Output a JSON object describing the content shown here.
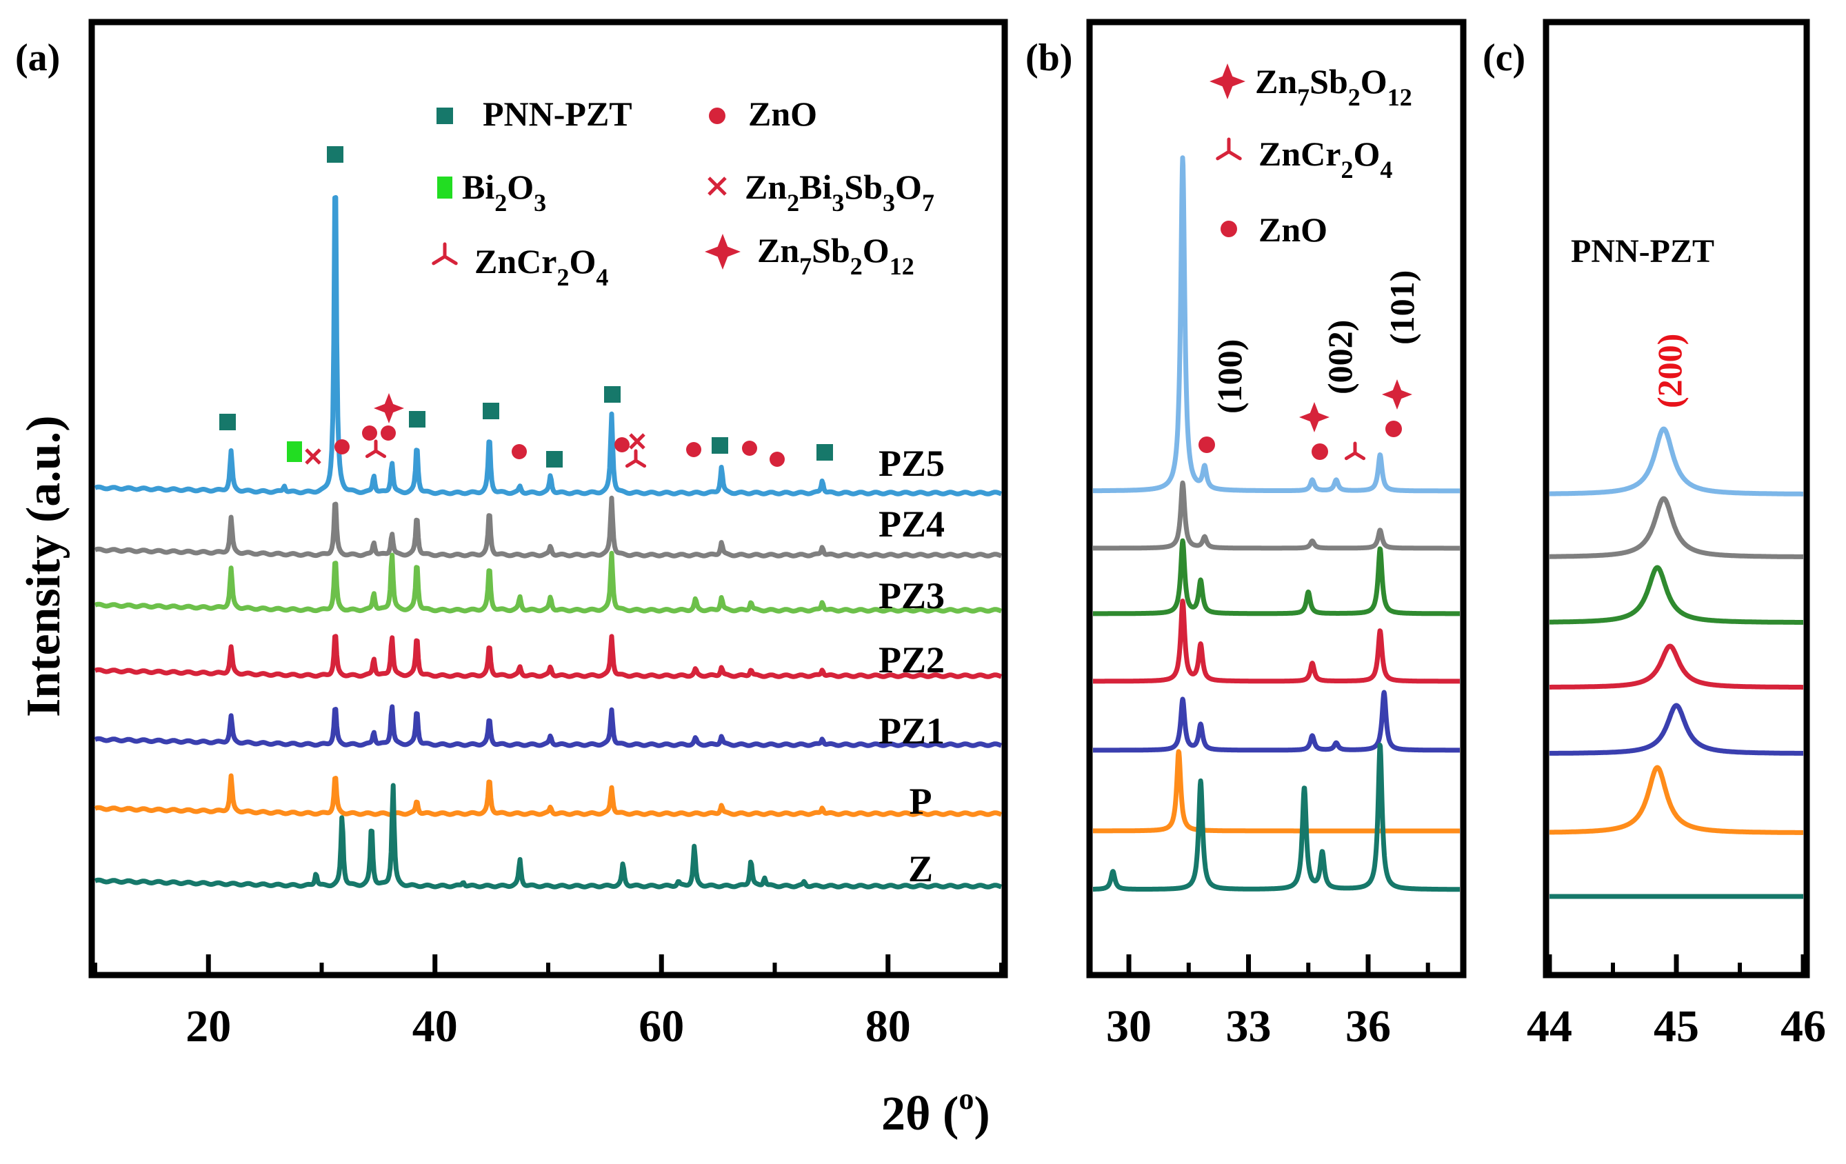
{
  "figure": {
    "ylabel": "Intensity (a.u.)",
    "xlabel_main": "2θ (",
    "xlabel_sup": "o",
    "xlabel_tail": ")"
  },
  "colors": {
    "PZ5": "#3a9bd5",
    "PZ4": "#7f7f7f",
    "PZ3": "#6cc04a",
    "PZ2": "#d6233a",
    "PZ1": "#3a3faf",
    "P": "#ff8c1a",
    "Z": "#16786a",
    "PZ5_b": "#7cb6e8",
    "PZ3_b": "#2f8a2f",
    "marker_pnn": "#16786a",
    "marker_bi2o3": "#22dd22",
    "marker_red": "#d6233a"
  },
  "legend_a": [
    {
      "key": "pnn",
      "sym": "PNN-PZT",
      "sub": ""
    },
    {
      "key": "zno",
      "sym": "ZnO",
      "sub": ""
    },
    {
      "key": "bi2o3",
      "parts": [
        [
          "Bi",
          ""
        ],
        [
          "2",
          "sub"
        ],
        [
          "O",
          ""
        ],
        [
          "3",
          "sub"
        ]
      ]
    },
    {
      "key": "znbisbo",
      "parts": [
        [
          "Zn",
          ""
        ],
        [
          "2",
          "sub"
        ],
        [
          "Bi",
          ""
        ],
        [
          "3",
          "sub"
        ],
        [
          "Sb",
          ""
        ],
        [
          "3",
          "sub"
        ],
        [
          "O",
          ""
        ],
        [
          "7",
          "sub"
        ]
      ]
    },
    {
      "key": "zncro",
      "parts": [
        [
          "ZnCr",
          ""
        ],
        [
          "2",
          "sub"
        ],
        [
          "O",
          ""
        ],
        [
          "4",
          "sub"
        ]
      ]
    },
    {
      "key": "znsbo",
      "parts": [
        [
          "Zn",
          ""
        ],
        [
          "7",
          "sub"
        ],
        [
          "Sb",
          ""
        ],
        [
          "2",
          "sub"
        ],
        [
          "O",
          ""
        ],
        [
          "12",
          "sub"
        ]
      ]
    }
  ],
  "legend_b": [
    {
      "key": "znsbo",
      "parts": [
        [
          "Zn",
          ""
        ],
        [
          "7",
          "sub"
        ],
        [
          "Sb",
          ""
        ],
        [
          "2",
          "sub"
        ],
        [
          "O",
          ""
        ],
        [
          "12",
          "sub"
        ]
      ]
    },
    {
      "key": "zncro",
      "parts": [
        [
          "ZnCr",
          ""
        ],
        [
          "2",
          "sub"
        ],
        [
          "O",
          ""
        ],
        [
          "4",
          "sub"
        ]
      ]
    },
    {
      "key": "zno",
      "parts": [
        [
          "ZnO",
          ""
        ]
      ]
    }
  ],
  "chart_data": [
    {
      "panel": "(a)",
      "type": "line",
      "xlim": [
        10,
        90
      ],
      "xticks": [
        20,
        40,
        60,
        80
      ],
      "xtick_labels": [
        "20",
        "40",
        "60",
        "80"
      ],
      "series": [
        {
          "name": "PZ5",
          "offset": 6,
          "peaks": [
            [
              22.0,
              0.9
            ],
            [
              31.2,
              7.6
            ],
            [
              34.6,
              0.4
            ],
            [
              36.2,
              0.7
            ],
            [
              38.4,
              1.1
            ],
            [
              44.8,
              1.3
            ],
            [
              50.2,
              0.4
            ],
            [
              55.6,
              1.8
            ],
            [
              65.3,
              0.6
            ],
            [
              74.2,
              0.3
            ],
            [
              26.7,
              0.15
            ],
            [
              47.5,
              0.15
            ]
          ]
        },
        {
          "name": "PZ4",
          "offset": 5,
          "peaks": [
            [
              22.0,
              0.8
            ],
            [
              31.2,
              1.3
            ],
            [
              34.6,
              0.3
            ],
            [
              36.2,
              0.5
            ],
            [
              38.4,
              0.9
            ],
            [
              44.8,
              1.0
            ],
            [
              50.2,
              0.2
            ],
            [
              55.6,
              1.3
            ],
            [
              65.3,
              0.3
            ],
            [
              74.2,
              0.2
            ]
          ]
        },
        {
          "name": "PZ3",
          "offset": 4,
          "peaks": [
            [
              22.0,
              0.9
            ],
            [
              31.2,
              1.2
            ],
            [
              34.6,
              0.4
            ],
            [
              36.2,
              1.3
            ],
            [
              38.4,
              1.1
            ],
            [
              44.8,
              1.0
            ],
            [
              47.5,
              0.3
            ],
            [
              50.2,
              0.3
            ],
            [
              55.6,
              1.3
            ],
            [
              63.0,
              0.25
            ],
            [
              65.3,
              0.3
            ],
            [
              67.9,
              0.2
            ],
            [
              74.2,
              0.2
            ]
          ]
        },
        {
          "name": "PZ2",
          "offset": 3,
          "peaks": [
            [
              22.0,
              0.6
            ],
            [
              31.2,
              1.0
            ],
            [
              34.6,
              0.4
            ],
            [
              36.2,
              0.9
            ],
            [
              38.4,
              0.9
            ],
            [
              44.8,
              0.7
            ],
            [
              47.5,
              0.2
            ],
            [
              50.2,
              0.2
            ],
            [
              55.6,
              0.9
            ],
            [
              63.0,
              0.15
            ],
            [
              65.3,
              0.2
            ],
            [
              67.9,
              0.15
            ],
            [
              74.2,
              0.15
            ]
          ]
        },
        {
          "name": "PZ1",
          "offset": 2,
          "peaks": [
            [
              22.0,
              0.6
            ],
            [
              31.2,
              0.9
            ],
            [
              34.6,
              0.3
            ],
            [
              36.2,
              0.9
            ],
            [
              38.4,
              0.8
            ],
            [
              44.8,
              0.6
            ],
            [
              50.2,
              0.2
            ],
            [
              55.6,
              0.8
            ],
            [
              63.0,
              0.15
            ],
            [
              65.3,
              0.2
            ],
            [
              74.2,
              0.15
            ]
          ]
        },
        {
          "name": "P",
          "offset": 1,
          "peaks": [
            [
              22.0,
              0.8
            ],
            [
              31.2,
              0.9
            ],
            [
              38.4,
              0.3
            ],
            [
              44.8,
              0.8
            ],
            [
              50.2,
              0.15
            ],
            [
              55.6,
              0.6
            ],
            [
              65.3,
              0.2
            ],
            [
              74.2,
              0.15
            ]
          ]
        },
        {
          "name": "Z",
          "offset": 0,
          "peaks": [
            [
              31.8,
              1.6
            ],
            [
              34.4,
              1.4
            ],
            [
              36.3,
              2.3
            ],
            [
              29.5,
              0.3
            ],
            [
              47.5,
              0.6
            ],
            [
              56.6,
              0.5
            ],
            [
              62.9,
              0.9
            ],
            [
              67.9,
              0.6
            ],
            [
              69.1,
              0.2
            ],
            [
              72.6,
              0.1
            ],
            [
              42.5,
              0.1
            ],
            [
              61.5,
              0.1
            ]
          ]
        }
      ]
    },
    {
      "panel": "(b)",
      "type": "line",
      "xlim": [
        29.1,
        38.3
      ],
      "xticks": [
        30,
        33,
        36
      ],
      "xtick_labels": [
        "30",
        "33",
        "36"
      ],
      "annotations": [
        "(100)",
        "(002)",
        "(101)"
      ],
      "series": [
        {
          "name": "PZ5",
          "peaks": [
            [
              31.35,
              4.6
            ],
            [
              31.9,
              0.3
            ],
            [
              34.6,
              0.15
            ],
            [
              35.2,
              0.15
            ],
            [
              36.3,
              0.5
            ]
          ]
        },
        {
          "name": "PZ4",
          "peaks": [
            [
              31.35,
              0.9
            ],
            [
              31.9,
              0.15
            ],
            [
              34.6,
              0.1
            ],
            [
              36.3,
              0.25
            ]
          ]
        },
        {
          "name": "PZ3",
          "peaks": [
            [
              31.35,
              1.0
            ],
            [
              31.8,
              0.45
            ],
            [
              34.5,
              0.3
            ],
            [
              36.3,
              0.9
            ]
          ]
        },
        {
          "name": "PZ2",
          "peaks": [
            [
              31.35,
              1.1
            ],
            [
              31.8,
              0.5
            ],
            [
              34.6,
              0.25
            ],
            [
              36.3,
              0.7
            ]
          ]
        },
        {
          "name": "PZ1",
          "peaks": [
            [
              31.35,
              0.7
            ],
            [
              31.8,
              0.35
            ],
            [
              34.6,
              0.2
            ],
            [
              35.2,
              0.1
            ],
            [
              36.4,
              0.8
            ]
          ]
        },
        {
          "name": "P",
          "peaks": [
            [
              31.25,
              1.1
            ]
          ]
        },
        {
          "name": "Z",
          "peaks": [
            [
              29.6,
              0.25
            ],
            [
              31.8,
              1.5
            ],
            [
              34.4,
              1.4
            ],
            [
              34.85,
              0.5
            ],
            [
              36.3,
              2.0
            ]
          ]
        }
      ]
    },
    {
      "panel": "(c)",
      "type": "line",
      "xlim": [
        44,
        46
      ],
      "xticks": [
        44,
        45,
        46
      ],
      "xtick_labels": [
        "44",
        "45",
        "46"
      ],
      "title": "PNN-PZT",
      "annotations": [
        "(200)"
      ],
      "series": [
        {
          "name": "PZ5",
          "peaks": [
            [
              44.9,
              0.95
            ]
          ]
        },
        {
          "name": "PZ4",
          "peaks": [
            [
              44.9,
              0.85
            ]
          ]
        },
        {
          "name": "PZ3",
          "peaks": [
            [
              44.85,
              0.8
            ]
          ]
        },
        {
          "name": "PZ2",
          "peaks": [
            [
              44.95,
              0.6
            ]
          ]
        },
        {
          "name": "PZ1",
          "peaks": [
            [
              45.0,
              0.7
            ]
          ]
        },
        {
          "name": "P",
          "peaks": [
            [
              44.85,
              0.95
            ]
          ]
        },
        {
          "name": "Z",
          "peaks": []
        }
      ]
    }
  ],
  "samples": [
    "PZ5",
    "PZ4",
    "PZ3",
    "PZ2",
    "PZ1",
    "P",
    "Z"
  ]
}
